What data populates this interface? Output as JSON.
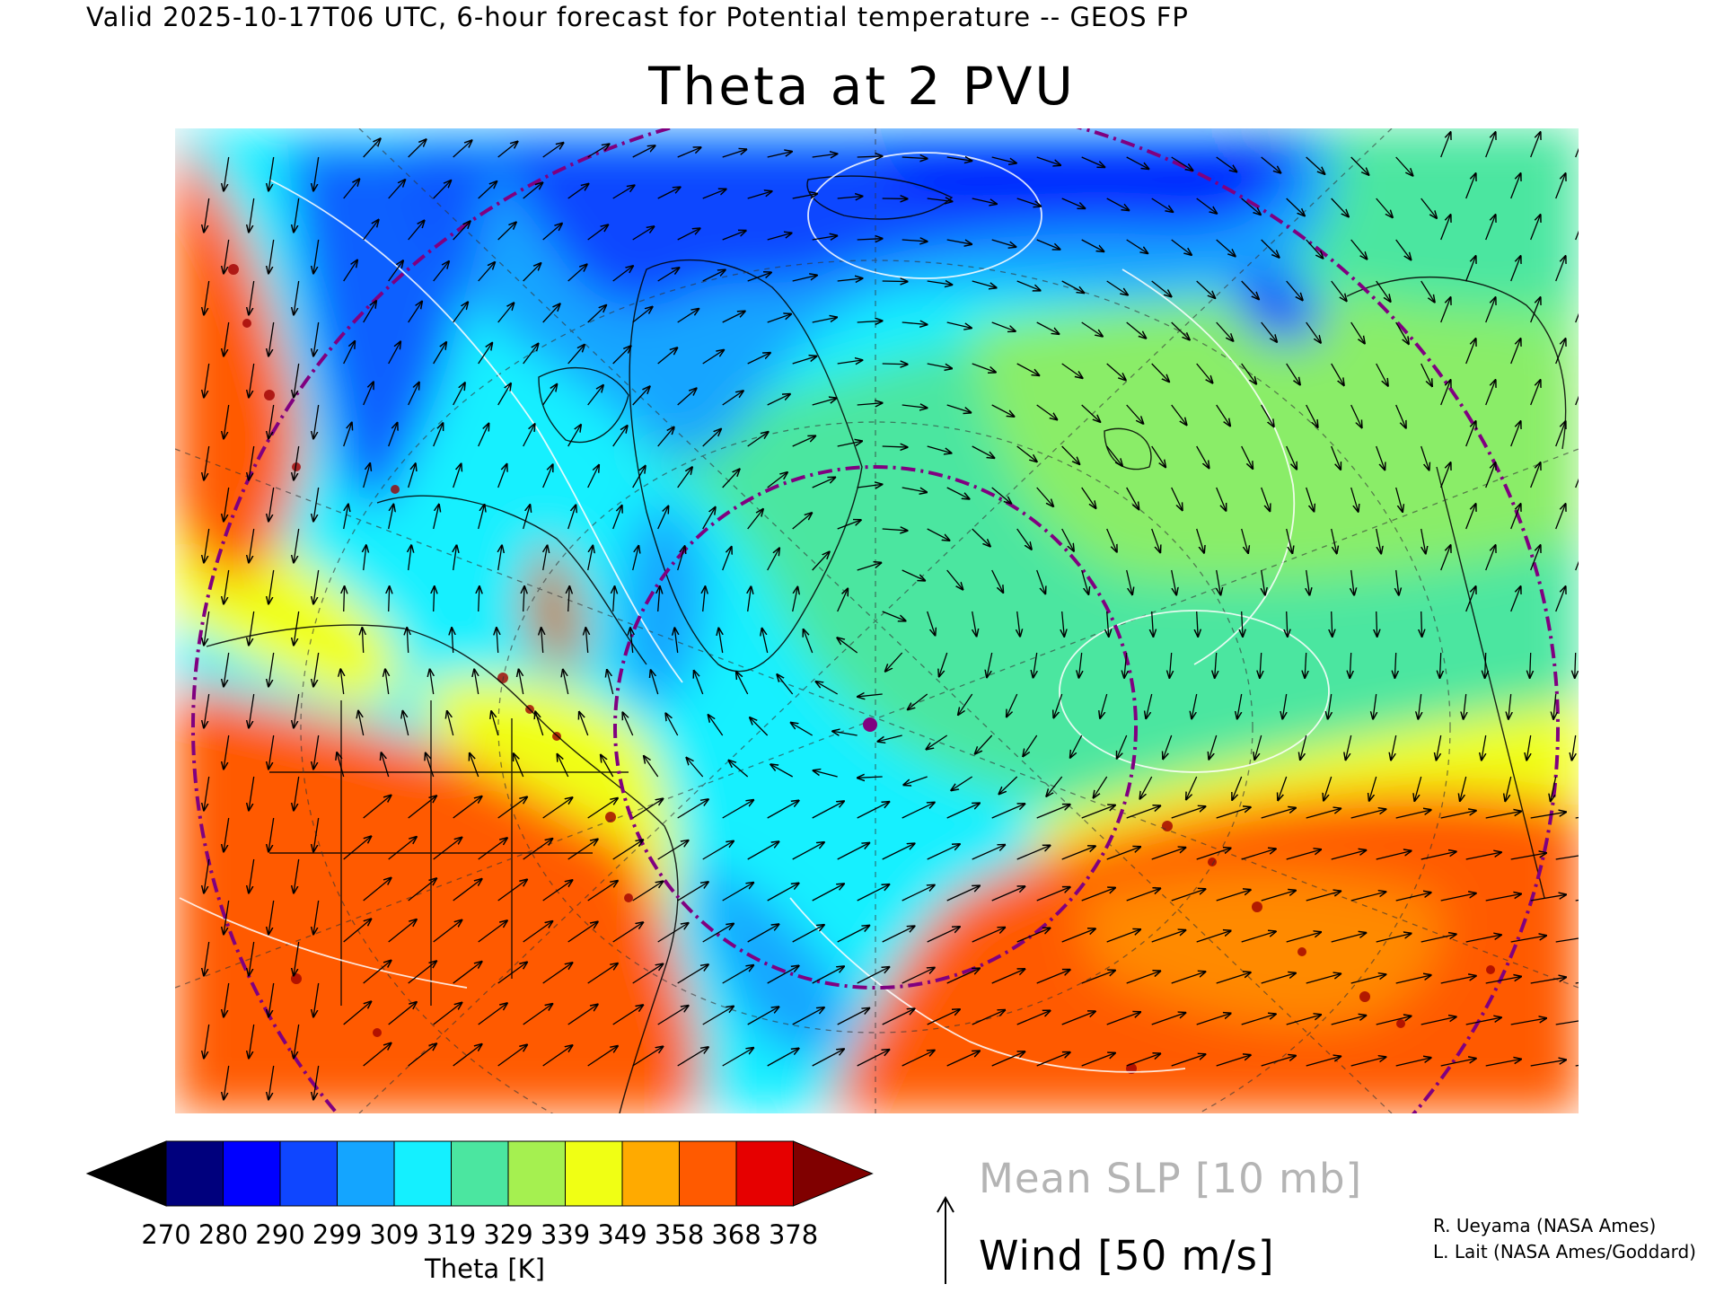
{
  "header": {
    "valid_line": "Valid 2025-10-17T06 UTC, 6-hour forecast for Potential temperature -- GEOS FP",
    "title": "Theta at 2 PVU"
  },
  "map": {
    "variable": "Potential temperature on the 2 PVU surface",
    "projection": "polar stereographic, North Atlantic / Arctic view",
    "overlays": [
      "theta-shading",
      "coastlines-and-borders",
      "graticule-dashed",
      "mean-slp-contours-white",
      "wind-vectors",
      "range-rings-purple-dashdot",
      "station-marker"
    ],
    "marker_color": "#800080"
  },
  "colorbar": {
    "levels": [
      "270",
      "280",
      "290",
      "299",
      "309",
      "319",
      "329",
      "339",
      "349",
      "358",
      "368",
      "378"
    ],
    "colors": [
      "#000000",
      "#00007d",
      "#0000ff",
      "#0f46ff",
      "#14a5ff",
      "#14f0ff",
      "#4be6a0",
      "#a5f050",
      "#f0ff14",
      "#ffaa00",
      "#ff5a00",
      "#e60000",
      "#800000"
    ],
    "label": "Theta [K]"
  },
  "legend": {
    "slp": "Mean SLP [10 mb]",
    "wind": "Wind [50 m/s]"
  },
  "credits": [
    "R. Ueyama (NASA Ames)",
    "L. Lait (NASA Ames/Goddard)"
  ]
}
